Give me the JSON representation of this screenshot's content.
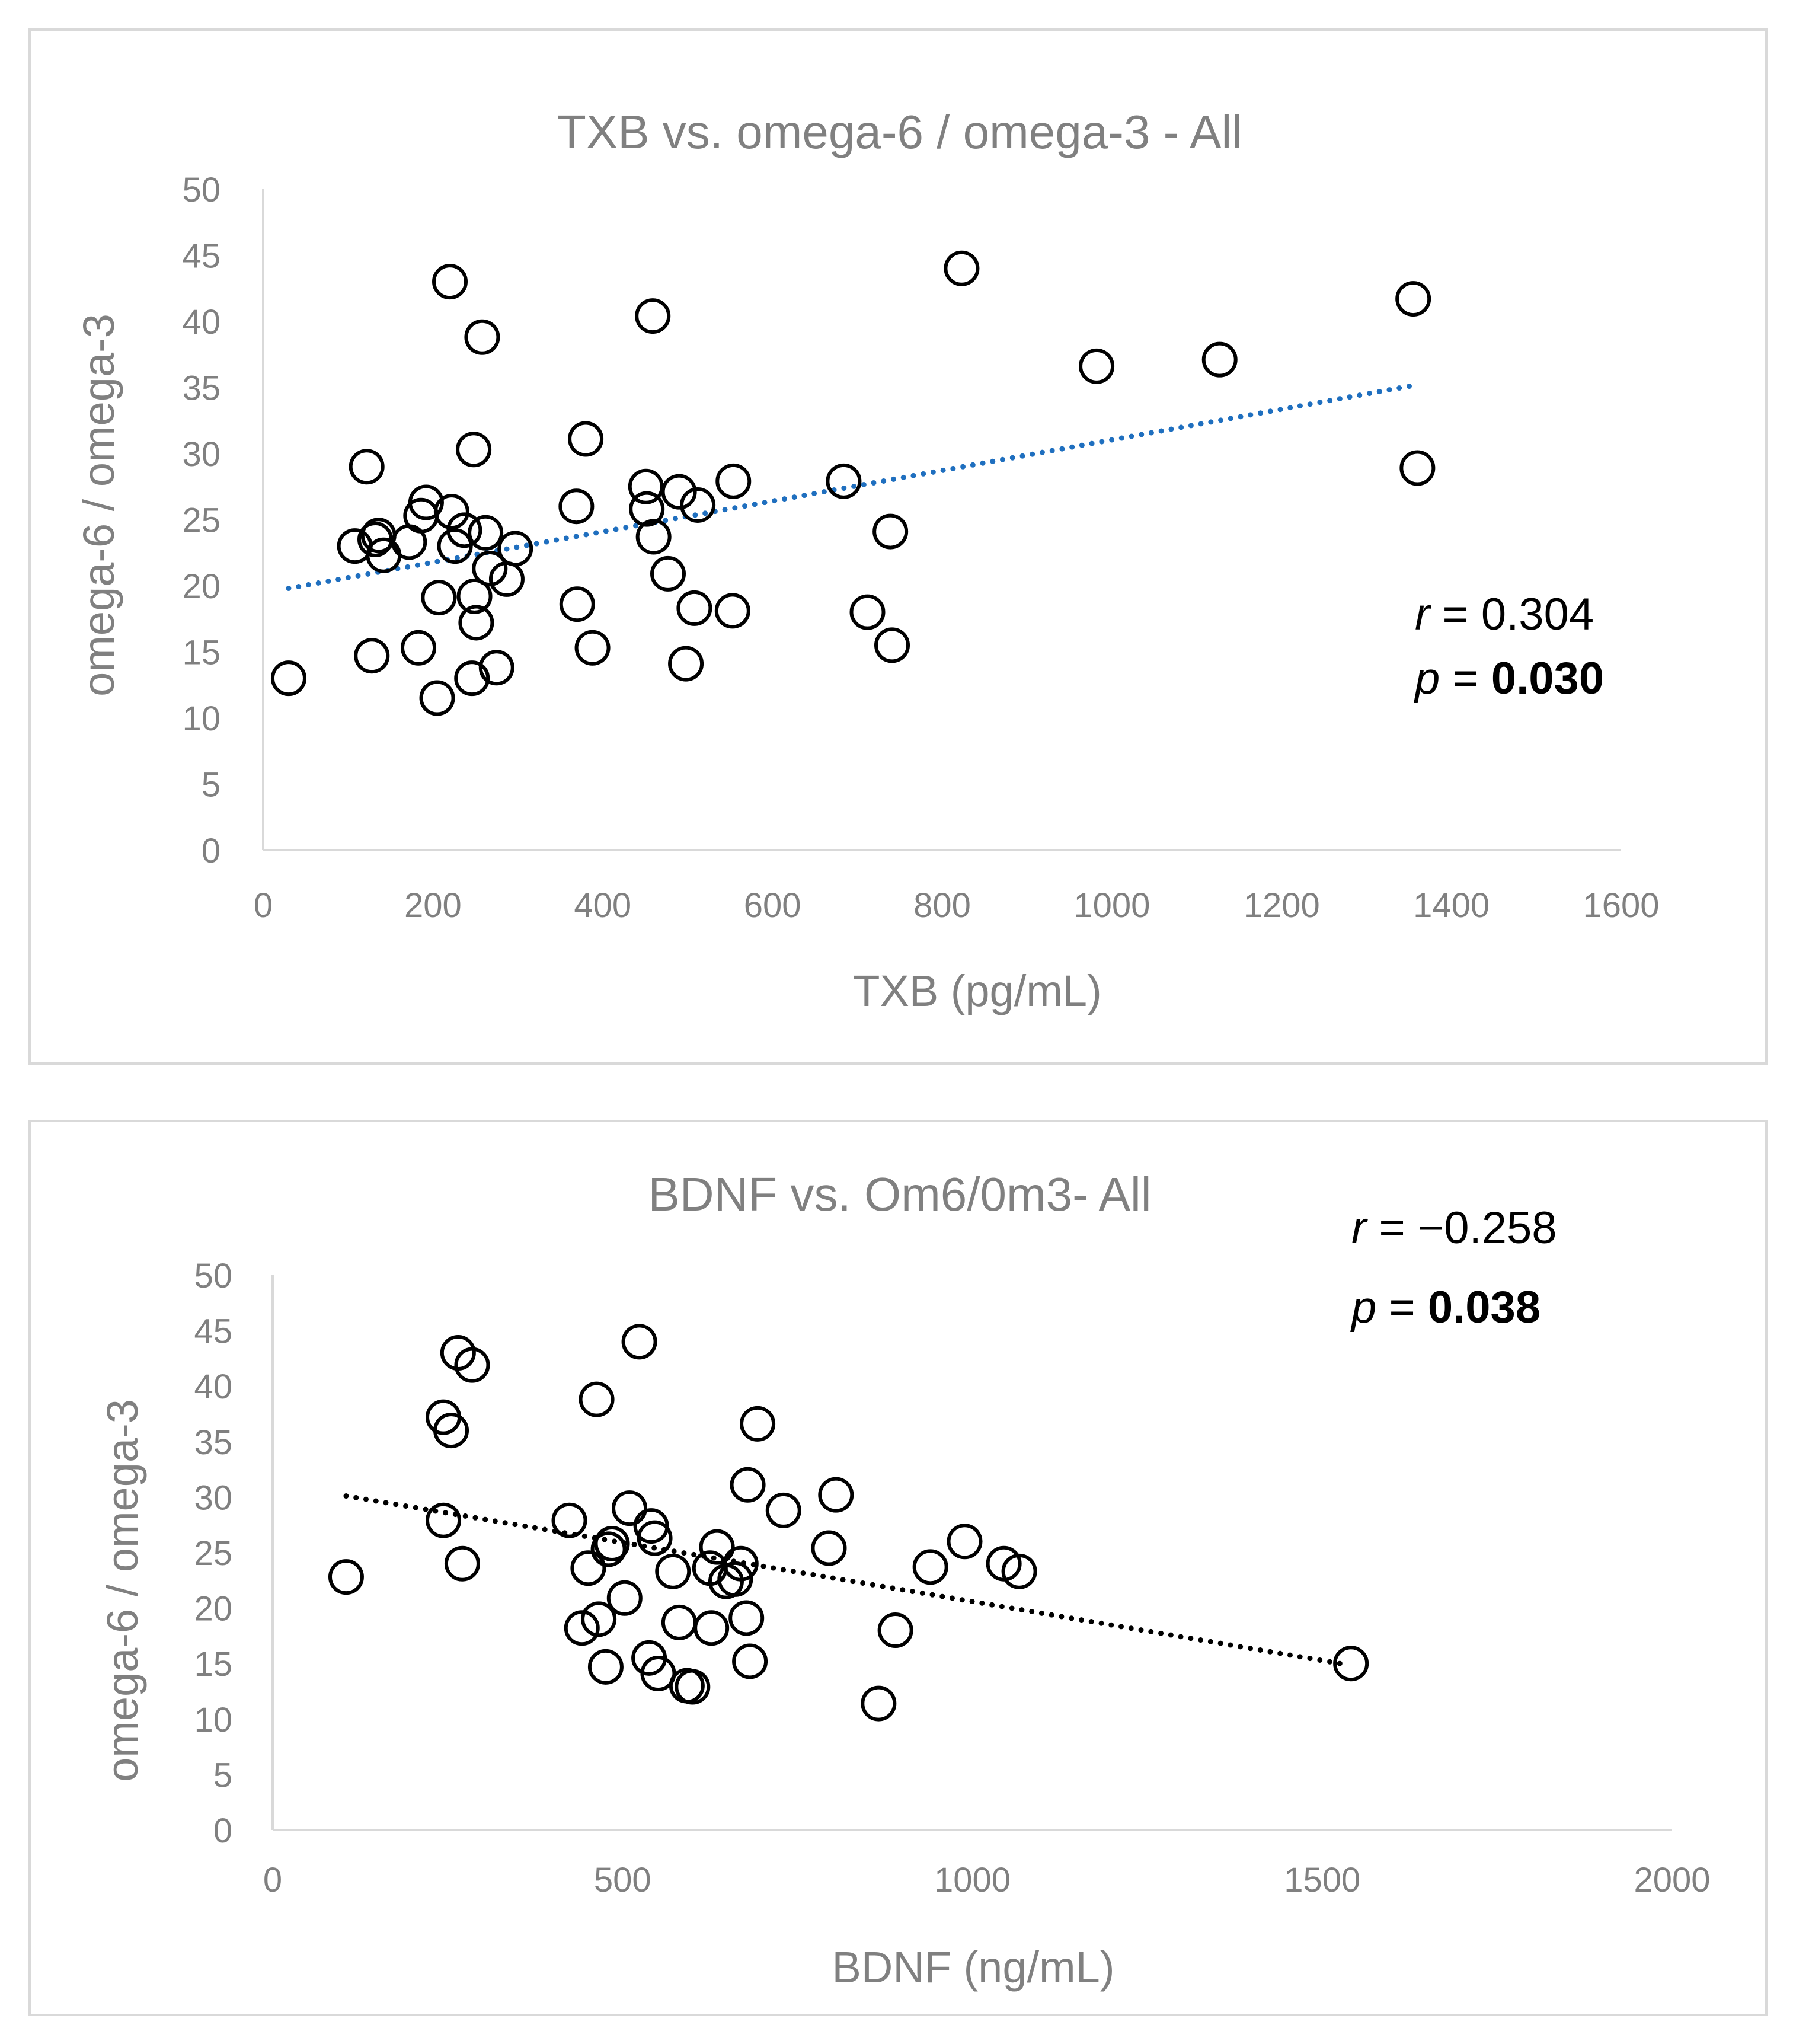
{
  "chart_data": [
    {
      "type": "scatter",
      "title": "TXB vs. omega-6 / omega-3 - All",
      "xlabel": "TXB (pg/mL)",
      "ylabel": "omega-6 / omega-3",
      "xlim": [
        0,
        1600
      ],
      "ylim": [
        0,
        50
      ],
      "xticks": [
        "0",
        "200",
        "400",
        "600",
        "800",
        "1000",
        "1200",
        "1400",
        "1600"
      ],
      "yticks": [
        "0",
        "5",
        "10",
        "15",
        "20",
        "25",
        "30",
        "35",
        "40",
        "45",
        "50"
      ],
      "marker_color": "#000000",
      "trendline": {
        "style": "dotted",
        "color": "#1f6fbf",
        "x": [
          30,
          1360
        ],
        "y": [
          19.8,
          35.2
        ]
      },
      "annotation": {
        "r_label": "r",
        "r_value": " = 0.304",
        "p_label": "p",
        "p_eq": " = ",
        "p_value": "0.030"
      },
      "points": [
        {
          "x": 30,
          "y": 13.0
        },
        {
          "x": 108,
          "y": 23.0
        },
        {
          "x": 122,
          "y": 29.0
        },
        {
          "x": 128,
          "y": 14.7
        },
        {
          "x": 132,
          "y": 23.5
        },
        {
          "x": 136,
          "y": 23.8
        },
        {
          "x": 142,
          "y": 22.3
        },
        {
          "x": 172,
          "y": 23.3
        },
        {
          "x": 183,
          "y": 15.3
        },
        {
          "x": 186,
          "y": 25.3
        },
        {
          "x": 192,
          "y": 26.3
        },
        {
          "x": 205,
          "y": 11.5
        },
        {
          "x": 207,
          "y": 19.1
        },
        {
          "x": 220,
          "y": 43.0
        },
        {
          "x": 222,
          "y": 25.6
        },
        {
          "x": 226,
          "y": 23.0
        },
        {
          "x": 237,
          "y": 24.2
        },
        {
          "x": 246,
          "y": 13.0
        },
        {
          "x": 248,
          "y": 30.3
        },
        {
          "x": 249,
          "y": 19.2
        },
        {
          "x": 251,
          "y": 17.2
        },
        {
          "x": 258,
          "y": 38.8
        },
        {
          "x": 262,
          "y": 24.0
        },
        {
          "x": 267,
          "y": 21.3
        },
        {
          "x": 275,
          "y": 13.8
        },
        {
          "x": 287,
          "y": 20.5
        },
        {
          "x": 297,
          "y": 22.8
        },
        {
          "x": 369,
          "y": 26.0
        },
        {
          "x": 370,
          "y": 18.6
        },
        {
          "x": 380,
          "y": 31.1
        },
        {
          "x": 388,
          "y": 15.3
        },
        {
          "x": 451,
          "y": 27.5
        },
        {
          "x": 452,
          "y": 25.8
        },
        {
          "x": 459,
          "y": 40.4
        },
        {
          "x": 460,
          "y": 23.7
        },
        {
          "x": 477,
          "y": 20.9
        },
        {
          "x": 490,
          "y": 27.1
        },
        {
          "x": 498,
          "y": 14.1
        },
        {
          "x": 508,
          "y": 18.3
        },
        {
          "x": 512,
          "y": 26.1
        },
        {
          "x": 553,
          "y": 18.1
        },
        {
          "x": 554,
          "y": 27.9
        },
        {
          "x": 684,
          "y": 27.9
        },
        {
          "x": 712,
          "y": 18.0
        },
        {
          "x": 739,
          "y": 24.1
        },
        {
          "x": 741,
          "y": 15.5
        },
        {
          "x": 823,
          "y": 44.0
        },
        {
          "x": 982,
          "y": 36.6
        },
        {
          "x": 1127,
          "y": 37.1
        },
        {
          "x": 1355,
          "y": 41.7
        },
        {
          "x": 1360,
          "y": 28.9
        }
      ]
    },
    {
      "type": "scatter",
      "title": "BDNF vs. Om6/0m3- All",
      "xlabel": "BDNF (ng/mL)",
      "ylabel": "omega-6 / omega-3",
      "xlim": [
        0,
        2000
      ],
      "ylim": [
        0,
        50
      ],
      "xticks": [
        "0",
        "500",
        "1000",
        "1500",
        "2000"
      ],
      "yticks": [
        "0",
        "5",
        "10",
        "15",
        "20",
        "25",
        "30",
        "35",
        "40",
        "45",
        "50"
      ],
      "marker_color": "#000000",
      "trendline": {
        "style": "dotted",
        "color": "#000000",
        "x": [
          105,
          1535
        ],
        "y": [
          30.1,
          14.9
        ]
      },
      "annotation": {
        "r_label": "r",
        "r_value": " = −0.258",
        "p_label": "p",
        "p_eq": " = ",
        "p_value": "0.038"
      },
      "points": [
        {
          "x": 105,
          "y": 22.8
        },
        {
          "x": 244,
          "y": 37.2
        },
        {
          "x": 244,
          "y": 27.9
        },
        {
          "x": 255,
          "y": 36.0
        },
        {
          "x": 265,
          "y": 43.0
        },
        {
          "x": 271,
          "y": 24.0
        },
        {
          "x": 285,
          "y": 41.9
        },
        {
          "x": 424,
          "y": 27.9
        },
        {
          "x": 442,
          "y": 18.2
        },
        {
          "x": 451,
          "y": 23.6
        },
        {
          "x": 463,
          "y": 38.8
        },
        {
          "x": 466,
          "y": 19.0
        },
        {
          "x": 476,
          "y": 14.7
        },
        {
          "x": 480,
          "y": 25.3
        },
        {
          "x": 485,
          "y": 25.8
        },
        {
          "x": 503,
          "y": 20.9
        },
        {
          "x": 510,
          "y": 29.0
        },
        {
          "x": 524,
          "y": 44.0
        },
        {
          "x": 538,
          "y": 15.5
        },
        {
          "x": 541,
          "y": 27.4
        },
        {
          "x": 546,
          "y": 26.3
        },
        {
          "x": 551,
          "y": 14.1
        },
        {
          "x": 572,
          "y": 23.3
        },
        {
          "x": 581,
          "y": 18.7
        },
        {
          "x": 592,
          "y": 13.0
        },
        {
          "x": 600,
          "y": 12.9
        },
        {
          "x": 625,
          "y": 23.6
        },
        {
          "x": 627,
          "y": 18.2
        },
        {
          "x": 635,
          "y": 25.5
        },
        {
          "x": 648,
          "y": 22.4
        },
        {
          "x": 661,
          "y": 22.6
        },
        {
          "x": 669,
          "y": 24.0
        },
        {
          "x": 677,
          "y": 19.1
        },
        {
          "x": 679,
          "y": 31.1
        },
        {
          "x": 682,
          "y": 15.2
        },
        {
          "x": 693,
          "y": 36.6
        },
        {
          "x": 730,
          "y": 28.8
        },
        {
          "x": 795,
          "y": 25.4
        },
        {
          "x": 805,
          "y": 30.2
        },
        {
          "x": 866,
          "y": 11.4
        },
        {
          "x": 890,
          "y": 18.0
        },
        {
          "x": 940,
          "y": 23.7
        },
        {
          "x": 989,
          "y": 26.0
        },
        {
          "x": 1045,
          "y": 24.0
        },
        {
          "x": 1067,
          "y": 23.3
        },
        {
          "x": 1541,
          "y": 15.0
        }
      ]
    }
  ]
}
